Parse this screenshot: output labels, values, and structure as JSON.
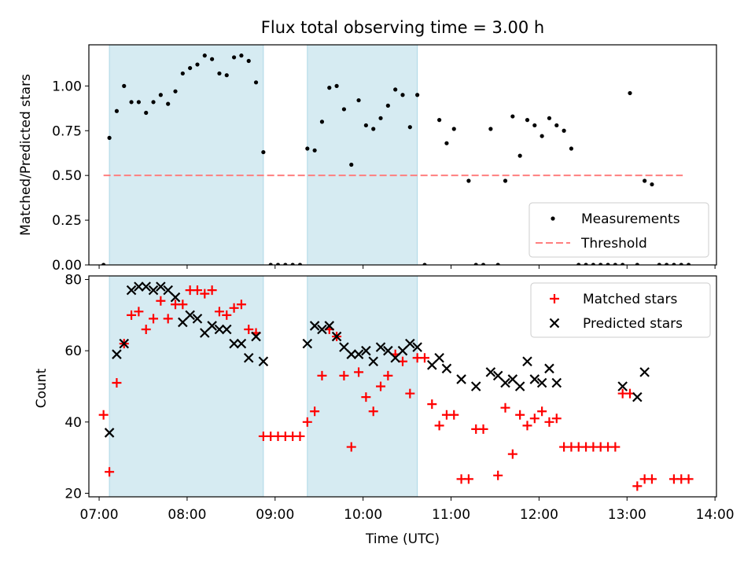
{
  "chart_data": [
    {
      "type": "scatter",
      "title": "Flux total observing time = 3.00 h",
      "xlabel": "",
      "ylabel": "Matched/Predicted stars",
      "ylim": [
        0,
        1.23
      ],
      "xlim": [
        "06:53",
        "14:01"
      ],
      "yticks": [
        "0.00",
        "0.25",
        "0.50",
        "0.75",
        "1.00"
      ],
      "shaded_intervals": [
        [
          "07:07",
          "08:52"
        ],
        [
          "09:22",
          "10:37"
        ]
      ],
      "threshold": {
        "name": "Threshold",
        "value": 0.5,
        "x_range": [
          "07:03",
          "13:38"
        ],
        "color": "#ff7f7f"
      },
      "legend": {
        "position": "lower-right",
        "entries": [
          "Measurements",
          "Threshold"
        ]
      },
      "series": [
        {
          "name": "Measurements",
          "marker": "dot",
          "color": "#000000",
          "points": [
            [
              "07:03",
              0
            ],
            [
              "07:07",
              0.71
            ],
            [
              "07:12",
              0.86
            ],
            [
              "07:17",
              1.0
            ],
            [
              "07:22",
              0.91
            ],
            [
              "07:27",
              0.91
            ],
            [
              "07:32",
              0.85
            ],
            [
              "07:37",
              0.91
            ],
            [
              "07:42",
              0.95
            ],
            [
              "07:47",
              0.9
            ],
            [
              "07:52",
              0.97
            ],
            [
              "07:57",
              1.07
            ],
            [
              "08:02",
              1.1
            ],
            [
              "08:07",
              1.12
            ],
            [
              "08:12",
              1.17
            ],
            [
              "08:17",
              1.15
            ],
            [
              "08:22",
              1.07
            ],
            [
              "08:27",
              1.06
            ],
            [
              "08:32",
              1.16
            ],
            [
              "08:37",
              1.17
            ],
            [
              "08:42",
              1.14
            ],
            [
              "08:47",
              1.02
            ],
            [
              "08:52",
              0.63
            ],
            [
              "08:57",
              0
            ],
            [
              "09:02",
              0
            ],
            [
              "09:07",
              0
            ],
            [
              "09:12",
              0
            ],
            [
              "09:17",
              0
            ],
            [
              "09:22",
              0.65
            ],
            [
              "09:27",
              0.64
            ],
            [
              "09:32",
              0.8
            ],
            [
              "09:37",
              0.99
            ],
            [
              "09:42",
              1.0
            ],
            [
              "09:47",
              0.87
            ],
            [
              "09:52",
              0.56
            ],
            [
              "09:57",
              0.92
            ],
            [
              "10:02",
              0.78
            ],
            [
              "10:07",
              0.76
            ],
            [
              "10:12",
              0.82
            ],
            [
              "10:17",
              0.89
            ],
            [
              "10:22",
              0.98
            ],
            [
              "10:27",
              0.95
            ],
            [
              "10:32",
              0.77
            ],
            [
              "10:37",
              0.95
            ],
            [
              "10:42",
              0
            ],
            [
              "10:52",
              0.81
            ],
            [
              "10:57",
              0.68
            ],
            [
              "11:02",
              0.76
            ],
            [
              "11:12",
              0.47
            ],
            [
              "11:17",
              0
            ],
            [
              "11:22",
              0
            ],
            [
              "11:27",
              0.76
            ],
            [
              "11:32",
              0
            ],
            [
              "11:37",
              0.47
            ],
            [
              "11:42",
              0.83
            ],
            [
              "11:47",
              0.61
            ],
            [
              "11:52",
              0.81
            ],
            [
              "11:57",
              0.78
            ],
            [
              "12:02",
              0.72
            ],
            [
              "12:07",
              0.82
            ],
            [
              "12:12",
              0.78
            ],
            [
              "12:17",
              0.75
            ],
            [
              "12:22",
              0.65
            ],
            [
              "12:27",
              0
            ],
            [
              "12:32",
              0
            ],
            [
              "12:37",
              0
            ],
            [
              "12:42",
              0
            ],
            [
              "12:47",
              0
            ],
            [
              "12:52",
              0
            ],
            [
              "12:57",
              0
            ],
            [
              "13:02",
              0.96
            ],
            [
              "13:07",
              0
            ],
            [
              "13:12",
              0.47
            ],
            [
              "13:17",
              0.45
            ],
            [
              "13:22",
              0
            ],
            [
              "13:27",
              0
            ],
            [
              "13:32",
              0
            ],
            [
              "13:37",
              0
            ],
            [
              "13:42",
              0
            ]
          ]
        }
      ]
    },
    {
      "type": "scatter",
      "xlabel": "Time (UTC)",
      "ylabel": "Count",
      "ylim": [
        19,
        81
      ],
      "xlim": [
        "06:53",
        "14:01"
      ],
      "yticks": [
        "20",
        "40",
        "60",
        "80"
      ],
      "xticks": [
        "07:00",
        "08:00",
        "09:00",
        "10:00",
        "11:00",
        "12:00",
        "13:00",
        "14:00"
      ],
      "shaded_intervals": [
        [
          "07:07",
          "08:52"
        ],
        [
          "09:22",
          "10:37"
        ]
      ],
      "legend": {
        "position": "top-right",
        "entries": [
          "Matched stars",
          "Predicted stars"
        ]
      },
      "series": [
        {
          "name": "Matched stars",
          "marker": "plus",
          "color": "#ff0000",
          "points": [
            [
              "07:03",
              42
            ],
            [
              "07:07",
              26
            ],
            [
              "07:12",
              51
            ],
            [
              "07:17",
              62
            ],
            [
              "07:22",
              70
            ],
            [
              "07:27",
              71
            ],
            [
              "07:32",
              66
            ],
            [
              "07:37",
              69
            ],
            [
              "07:42",
              74
            ],
            [
              "07:47",
              69
            ],
            [
              "07:52",
              73
            ],
            [
              "07:57",
              73
            ],
            [
              "08:02",
              77
            ],
            [
              "08:07",
              77
            ],
            [
              "08:12",
              76
            ],
            [
              "08:17",
              77
            ],
            [
              "08:22",
              71
            ],
            [
              "08:27",
              70
            ],
            [
              "08:32",
              72
            ],
            [
              "08:37",
              73
            ],
            [
              "08:42",
              66
            ],
            [
              "08:47",
              65
            ],
            [
              "08:52",
              36
            ],
            [
              "08:57",
              36
            ],
            [
              "09:02",
              36
            ],
            [
              "09:07",
              36
            ],
            [
              "09:12",
              36
            ],
            [
              "09:17",
              36
            ],
            [
              "09:22",
              40
            ],
            [
              "09:27",
              43
            ],
            [
              "09:32",
              53
            ],
            [
              "09:37",
              66
            ],
            [
              "09:42",
              64
            ],
            [
              "09:47",
              53
            ],
            [
              "09:52",
              33
            ],
            [
              "09:57",
              54
            ],
            [
              "10:02",
              47
            ],
            [
              "10:07",
              43
            ],
            [
              "10:12",
              50
            ],
            [
              "10:17",
              53
            ],
            [
              "10:22",
              59
            ],
            [
              "10:27",
              57
            ],
            [
              "10:32",
              48
            ],
            [
              "10:37",
              58
            ],
            [
              "10:42",
              58
            ],
            [
              "10:47",
              45
            ],
            [
              "10:52",
              39
            ],
            [
              "10:57",
              42
            ],
            [
              "11:02",
              42
            ],
            [
              "11:07",
              24
            ],
            [
              "11:12",
              24
            ],
            [
              "11:17",
              38
            ],
            [
              "11:22",
              38
            ],
            [
              "11:32",
              25
            ],
            [
              "11:37",
              44
            ],
            [
              "11:42",
              31
            ],
            [
              "11:47",
              42
            ],
            [
              "11:52",
              39
            ],
            [
              "11:57",
              41
            ],
            [
              "12:02",
              43
            ],
            [
              "12:07",
              40
            ],
            [
              "12:12",
              41
            ],
            [
              "12:17",
              33
            ],
            [
              "12:22",
              33
            ],
            [
              "12:27",
              33
            ],
            [
              "12:32",
              33
            ],
            [
              "12:37",
              33
            ],
            [
              "12:42",
              33
            ],
            [
              "12:47",
              33
            ],
            [
              "12:52",
              33
            ],
            [
              "12:57",
              48
            ],
            [
              "13:02",
              48
            ],
            [
              "13:07",
              22
            ],
            [
              "13:12",
              24
            ],
            [
              "13:17",
              24
            ],
            [
              "13:32",
              24
            ],
            [
              "13:37",
              24
            ],
            [
              "13:42",
              24
            ]
          ]
        },
        {
          "name": "Predicted stars",
          "marker": "x",
          "color": "#000000",
          "points": [
            [
              "07:07",
              37
            ],
            [
              "07:12",
              59
            ],
            [
              "07:17",
              62
            ],
            [
              "07:22",
              77
            ],
            [
              "07:27",
              78
            ],
            [
              "07:32",
              78
            ],
            [
              "07:37",
              77
            ],
            [
              "07:42",
              78
            ],
            [
              "07:47",
              77
            ],
            [
              "07:52",
              75
            ],
            [
              "07:57",
              68
            ],
            [
              "08:02",
              70
            ],
            [
              "08:07",
              69
            ],
            [
              "08:12",
              65
            ],
            [
              "08:17",
              67
            ],
            [
              "08:22",
              66
            ],
            [
              "08:27",
              66
            ],
            [
              "08:32",
              62
            ],
            [
              "08:37",
              62
            ],
            [
              "08:42",
              58
            ],
            [
              "08:47",
              64
            ],
            [
              "08:52",
              57
            ],
            [
              "09:22",
              62
            ],
            [
              "09:27",
              67
            ],
            [
              "09:32",
              66
            ],
            [
              "09:37",
              67
            ],
            [
              "09:42",
              64
            ],
            [
              "09:47",
              61
            ],
            [
              "09:52",
              59
            ],
            [
              "09:57",
              59
            ],
            [
              "10:02",
              60
            ],
            [
              "10:07",
              57
            ],
            [
              "10:12",
              61
            ],
            [
              "10:17",
              60
            ],
            [
              "10:22",
              58
            ],
            [
              "10:27",
              60
            ],
            [
              "10:32",
              62
            ],
            [
              "10:37",
              61
            ],
            [
              "10:47",
              56
            ],
            [
              "10:52",
              58
            ],
            [
              "10:57",
              55
            ],
            [
              "11:07",
              52
            ],
            [
              "11:17",
              50
            ],
            [
              "11:27",
              54
            ],
            [
              "11:32",
              53
            ],
            [
              "11:37",
              51
            ],
            [
              "11:42",
              52
            ],
            [
              "11:47",
              50
            ],
            [
              "11:52",
              57
            ],
            [
              "11:57",
              52
            ],
            [
              "12:02",
              51
            ],
            [
              "12:07",
              55
            ],
            [
              "12:12",
              51
            ],
            [
              "12:57",
              50
            ],
            [
              "13:07",
              47
            ],
            [
              "13:12",
              54
            ]
          ]
        }
      ]
    }
  ]
}
